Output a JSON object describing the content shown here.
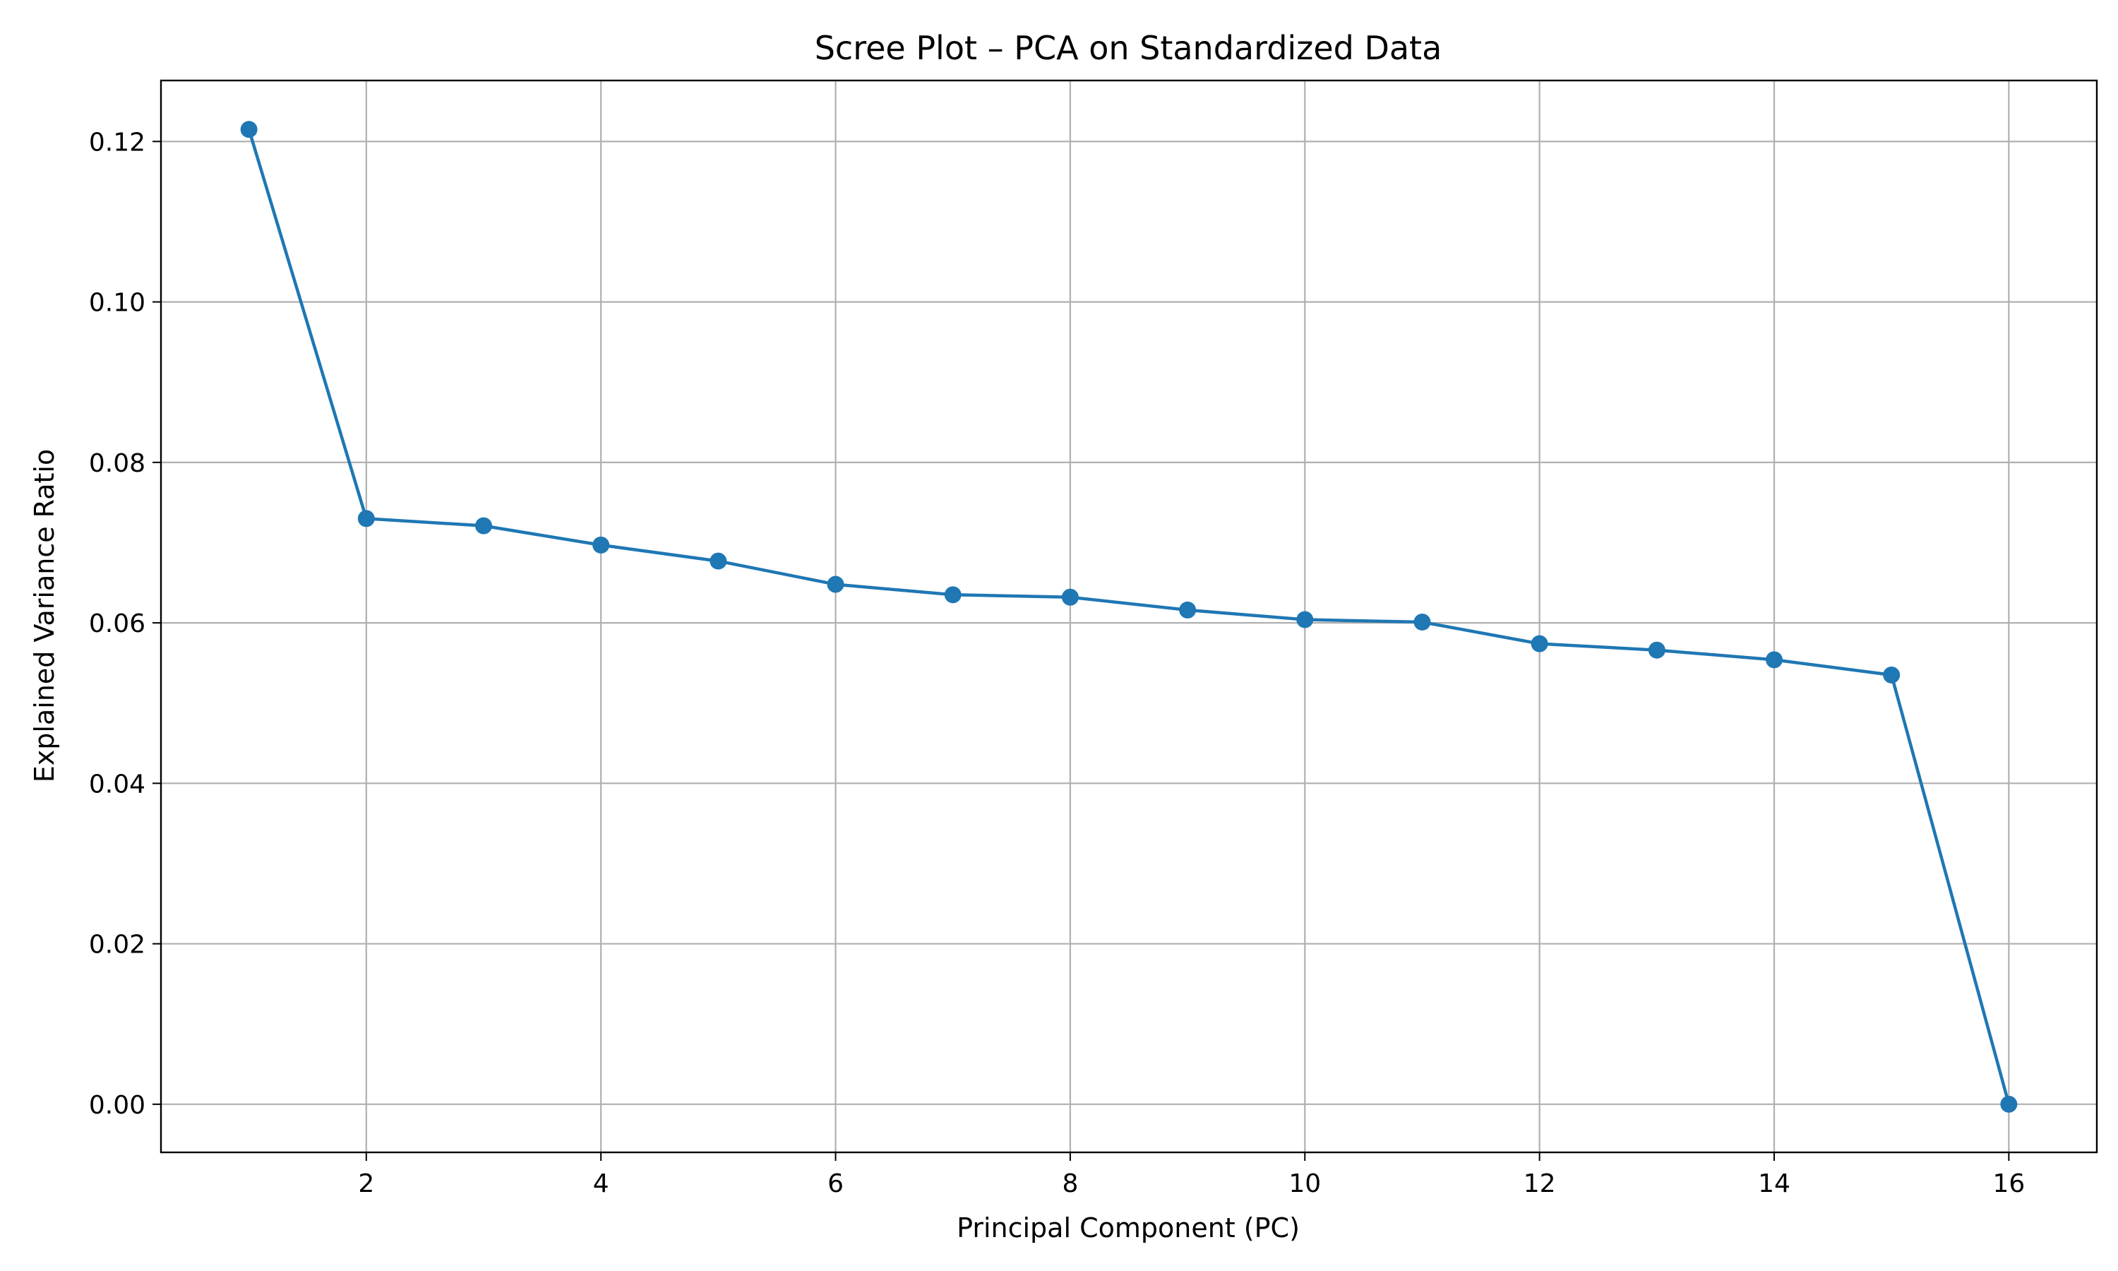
{
  "chart_data": {
    "type": "line",
    "title": "Scree Plot – PCA on Standardized Data",
    "xlabel": "Principal Component (PC)",
    "ylabel": "Explained Variance Ratio",
    "xlim": [
      0.25,
      16.75
    ],
    "ylim": [
      -0.006,
      0.1276
    ],
    "x_ticks": [
      2,
      4,
      6,
      8,
      10,
      12,
      14,
      16
    ],
    "y_ticks": [
      0.0,
      0.02,
      0.04,
      0.06,
      0.08,
      0.1,
      0.12
    ],
    "y_tick_labels": [
      "0.00",
      "0.02",
      "0.04",
      "0.06",
      "0.08",
      "0.10",
      "0.12"
    ],
    "x_tick_labels": [
      "2",
      "4",
      "6",
      "8",
      "10",
      "12",
      "14",
      "16"
    ],
    "grid": true,
    "marker": "circle",
    "color": "#1f77b4",
    "series": [
      {
        "x": [
          1,
          2,
          3,
          4,
          5,
          6,
          7,
          8,
          9,
          10,
          11,
          12,
          13,
          14,
          15,
          16
        ],
        "values": [
          0.1215,
          0.073,
          0.0721,
          0.0697,
          0.0677,
          0.0648,
          0.0635,
          0.0632,
          0.0616,
          0.0604,
          0.0601,
          0.0574,
          0.0566,
          0.0554,
          0.0535,
          0.0
        ]
      }
    ]
  }
}
